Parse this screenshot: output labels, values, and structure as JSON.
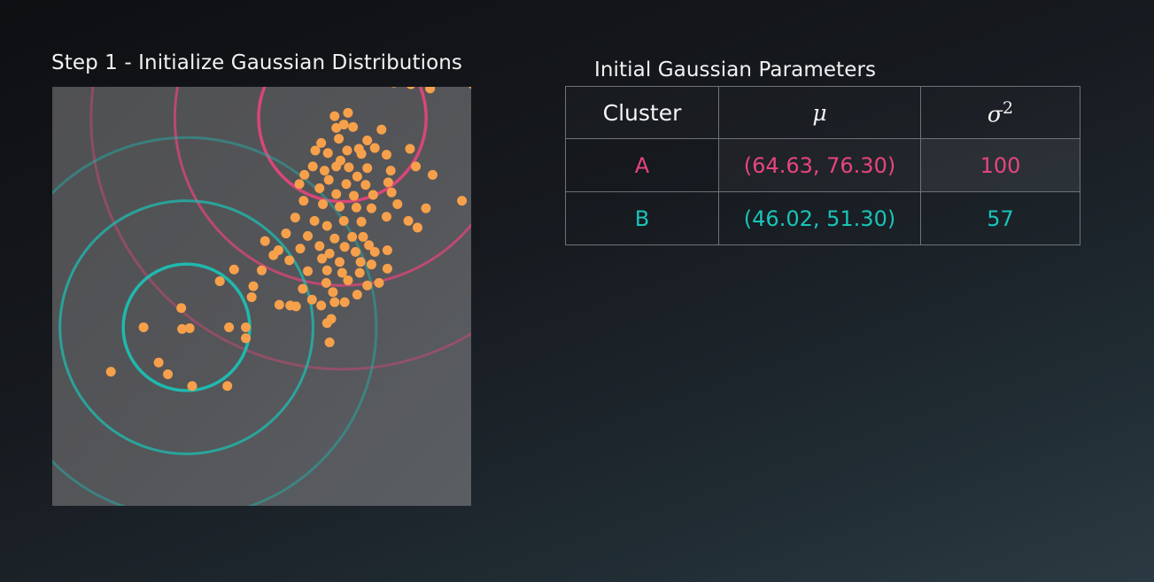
{
  "step_title": "Step 1 - Initialize Gaussian Distributions",
  "table": {
    "title": "Initial Gaussian Parameters",
    "headers": {
      "cluster": "Cluster",
      "mu": "μ",
      "sigma": "σ",
      "sigma_exp": "2"
    },
    "rows": [
      {
        "cluster": "A",
        "mu": "(64.63, 76.30)",
        "variance": "100",
        "color": "#e8457c"
      },
      {
        "cluster": "B",
        "mu": "(46.02, 51.30)",
        "variance": "57",
        "color": "#19c4b8"
      }
    ]
  },
  "chart_data": {
    "type": "scatter",
    "title": "",
    "xlabel": "",
    "ylabel": "",
    "xlim": [
      30,
      80
    ],
    "ylim": [
      30,
      80
    ],
    "grid": false,
    "point_color": "#f7a04b",
    "points": [
      [
        70.8,
        80.5
      ],
      [
        72.8,
        80.3
      ],
      [
        80.2,
        80.3
      ],
      [
        75.1,
        79.8
      ],
      [
        65.3,
        76.9
      ],
      [
        63.7,
        76.5
      ],
      [
        69.3,
        74.9
      ],
      [
        63.9,
        75.1
      ],
      [
        64.8,
        75.5
      ],
      [
        65.9,
        75.2
      ],
      [
        67.6,
        73.6
      ],
      [
        62.1,
        73.3
      ],
      [
        64.2,
        73.8
      ],
      [
        66.6,
        72.6
      ],
      [
        68.5,
        72.7
      ],
      [
        61.4,
        72.4
      ],
      [
        62.9,
        72.1
      ],
      [
        65.2,
        72.4
      ],
      [
        66.9,
        72.0
      ],
      [
        64.4,
        71.2
      ],
      [
        69.9,
        71.9
      ],
      [
        72.7,
        72.6
      ],
      [
        61.1,
        70.5
      ],
      [
        62.5,
        70.0
      ],
      [
        63.9,
        70.5
      ],
      [
        65.4,
        70.4
      ],
      [
        67.6,
        70.3
      ],
      [
        70.4,
        70.0
      ],
      [
        60.1,
        69.5
      ],
      [
        63.0,
        68.9
      ],
      [
        65.1,
        68.4
      ],
      [
        66.4,
        69.3
      ],
      [
        67.4,
        68.3
      ],
      [
        70.1,
        68.6
      ],
      [
        73.4,
        70.5
      ],
      [
        75.4,
        69.5
      ],
      [
        59.5,
        68.4
      ],
      [
        61.9,
        67.9
      ],
      [
        63.9,
        67.2
      ],
      [
        66.0,
        67.0
      ],
      [
        68.3,
        67.1
      ],
      [
        70.5,
        67.4
      ],
      [
        78.9,
        66.4
      ],
      [
        60.0,
        66.4
      ],
      [
        62.3,
        66.0
      ],
      [
        64.3,
        65.7
      ],
      [
        66.3,
        65.6
      ],
      [
        68.1,
        65.5
      ],
      [
        74.6,
        65.5
      ],
      [
        71.2,
        66.0
      ],
      [
        59.0,
        64.4
      ],
      [
        61.3,
        64.0
      ],
      [
        62.8,
        63.4
      ],
      [
        64.8,
        64.0
      ],
      [
        66.9,
        63.9
      ],
      [
        69.9,
        64.5
      ],
      [
        72.5,
        64.0
      ],
      [
        57.9,
        62.5
      ],
      [
        60.5,
        62.2
      ],
      [
        63.7,
        61.9
      ],
      [
        65.8,
        62.1
      ],
      [
        67.1,
        62.1
      ],
      [
        73.6,
        63.2
      ],
      [
        55.4,
        61.6
      ],
      [
        61.9,
        61.0
      ],
      [
        64.9,
        60.9
      ],
      [
        67.8,
        61.1
      ],
      [
        63.1,
        60.1
      ],
      [
        66.2,
        60.3
      ],
      [
        68.5,
        60.3
      ],
      [
        70.0,
        60.5
      ],
      [
        57.0,
        60.5
      ],
      [
        59.6,
        60.7
      ],
      [
        62.2,
        59.5
      ],
      [
        64.3,
        59.1
      ],
      [
        66.8,
        59.1
      ],
      [
        68.1,
        58.8
      ],
      [
        70.0,
        58.3
      ],
      [
        60.5,
        58.0
      ],
      [
        62.8,
        58.1
      ],
      [
        64.6,
        57.8
      ],
      [
        66.7,
        57.8
      ],
      [
        56.4,
        59.9
      ],
      [
        58.3,
        59.3
      ],
      [
        62.7,
        56.6
      ],
      [
        65.3,
        56.9
      ],
      [
        67.6,
        56.3
      ],
      [
        69.0,
        56.6
      ],
      [
        59.9,
        55.9
      ],
      [
        63.5,
        55.5
      ],
      [
        51.7,
        58.2
      ],
      [
        55.0,
        58.1
      ],
      [
        50.0,
        56.8
      ],
      [
        54.0,
        56.2
      ],
      [
        61.0,
        54.6
      ],
      [
        64.9,
        54.3
      ],
      [
        66.4,
        55.2
      ],
      [
        53.8,
        54.9
      ],
      [
        57.1,
        54.0
      ],
      [
        58.4,
        53.9
      ],
      [
        59.1,
        53.8
      ],
      [
        62.1,
        53.9
      ],
      [
        63.7,
        54.3
      ],
      [
        45.4,
        53.6
      ],
      [
        46.4,
        51.2
      ],
      [
        45.5,
        51.1
      ],
      [
        51.1,
        51.3
      ],
      [
        53.1,
        51.3
      ],
      [
        62.8,
        51.8
      ],
      [
        63.3,
        52.3
      ],
      [
        40.9,
        51.3
      ],
      [
        53.1,
        50.0
      ],
      [
        63.1,
        49.5
      ],
      [
        42.7,
        47.1
      ],
      [
        43.8,
        45.7
      ],
      [
        37.0,
        46.0
      ],
      [
        46.7,
        44.3
      ],
      [
        50.9,
        44.3
      ]
    ],
    "gaussians": [
      {
        "name": "A",
        "mu": [
          64.63,
          76.3
        ],
        "variance": 100,
        "color": "#e8457c"
      },
      {
        "name": "B",
        "mu": [
          46.02,
          51.3
        ],
        "variance": 57,
        "color": "#19c4b8"
      }
    ]
  }
}
